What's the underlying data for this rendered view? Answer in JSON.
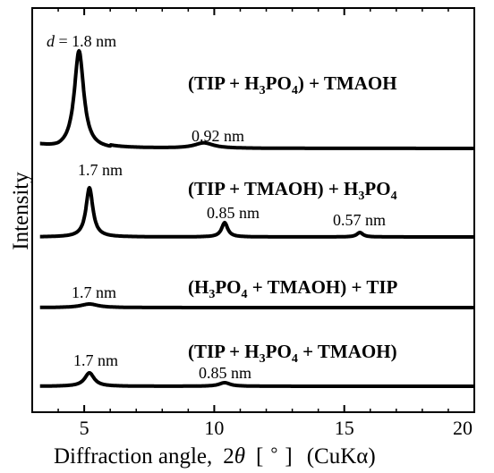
{
  "chart_data": {
    "type": "line",
    "xlabel_parts": {
      "prefix": "Diffraction angle,",
      "two": "2",
      "theta": "θ",
      "bracket_open": "[",
      "degree": "°",
      "bracket_close": "]",
      "radiation": "(CuKα)"
    },
    "ylabel": "Intensity",
    "xlim": [
      3,
      20
    ],
    "x_ticks": [
      5,
      10,
      15,
      20
    ],
    "y_ticks_shown": false,
    "line_color": "#000000",
    "series": [
      {
        "name": "(TIP + H3PO4) + TMAOH",
        "label_parts": [
          {
            "t": "(TIP + H"
          },
          {
            "t": "3",
            "sub": true
          },
          {
            "t": "PO"
          },
          {
            "t": "4",
            "sub": true
          },
          {
            "t": ") + TMAOH"
          }
        ],
        "peaks": [
          {
            "x": 4.8,
            "label": "d = 1.8 nm",
            "d_prefix": "d",
            "d_rest": " = 1.8 nm"
          },
          {
            "x": 9.6,
            "label": "0.92 nm"
          }
        ]
      },
      {
        "name": "(TIP + TMAOH) + H3PO4",
        "label_parts": [
          {
            "t": "(TIP + TMAOH) + H"
          },
          {
            "t": "3",
            "sub": true
          },
          {
            "t": "PO"
          },
          {
            "t": "4",
            "sub": true
          }
        ],
        "peaks": [
          {
            "x": 5.2,
            "label": "1.7 nm"
          },
          {
            "x": 10.4,
            "label": "0.85 nm"
          },
          {
            "x": 15.6,
            "label": "0.57 nm"
          }
        ]
      },
      {
        "name": "(H3PO4 + TMAOH) + TIP",
        "label_parts": [
          {
            "t": "(H"
          },
          {
            "t": "3",
            "sub": true
          },
          {
            "t": "PO"
          },
          {
            "t": "4",
            "sub": true
          },
          {
            "t": " + TMAOH) + TIP"
          }
        ],
        "peaks": [
          {
            "x": 5.2,
            "label": "1.7 nm"
          }
        ]
      },
      {
        "name": "(TIP + H3PO4 + TMAOH)",
        "label_parts": [
          {
            "t": "(TIP + H"
          },
          {
            "t": "3",
            "sub": true
          },
          {
            "t": "PO"
          },
          {
            "t": "4",
            "sub": true
          },
          {
            "t": " + TMAOH)"
          }
        ],
        "peaks": [
          {
            "x": 5.2,
            "label": "1.7 nm"
          },
          {
            "x": 10.4,
            "label": "0.85 nm"
          }
        ]
      }
    ]
  }
}
